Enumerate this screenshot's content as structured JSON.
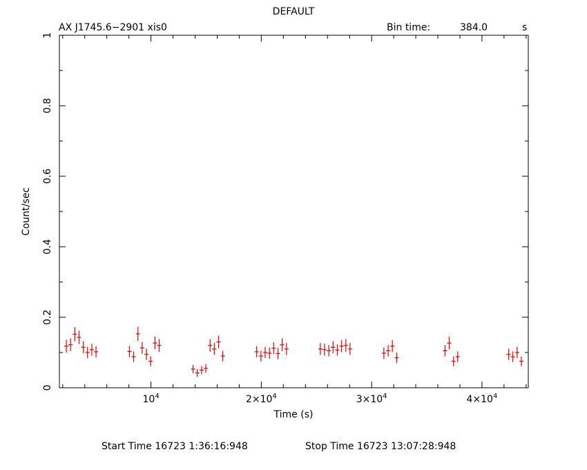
{
  "chart_data": {
    "type": "scatter",
    "title": "DEFAULT",
    "header_left": "AX J1745.6−2901  xis0",
    "header_bin_label": "Bin time:",
    "header_bin_value": "384.0",
    "header_bin_unit": "s",
    "xlabel": "Time (s)",
    "ylabel": "Count/sec",
    "xlim": [
      1700,
      44200
    ],
    "ylim": [
      0,
      1
    ],
    "x_ticks": [
      {
        "value": 10000,
        "base": "10",
        "exp": "4"
      },
      {
        "value": 20000,
        "base": "2×10",
        "exp": "4"
      },
      {
        "value": 30000,
        "base": "3×10",
        "exp": "4"
      },
      {
        "value": 40000,
        "base": "4×10",
        "exp": "4"
      }
    ],
    "y_ticks": [
      "0",
      "0.2",
      "0.4",
      "0.6",
      "0.8",
      "1"
    ],
    "y_tick_values": [
      0,
      0.2,
      0.4,
      0.6,
      0.8,
      1
    ],
    "footer_start": "Start Time 16723  1:36:16:948",
    "footer_stop": "Stop Time 16723 13:07:28:948",
    "marker_color": "#dd0000",
    "bin_half_width": 192,
    "series": [
      {
        "x": [
          2330,
          2710,
          3100,
          3480,
          3870,
          4250,
          4640,
          5020,
          8050,
          8430,
          8820,
          9200,
          9590,
          9970,
          10360,
          10740,
          13820,
          14200,
          14590,
          14970,
          15360,
          15740,
          16130,
          16510,
          19580,
          19970,
          20350,
          20740,
          21120,
          21510,
          21890,
          22280,
          25350,
          25730,
          26120,
          26500,
          26890,
          27270,
          27660,
          28040,
          31110,
          31500,
          31880,
          32270,
          36650,
          37030,
          37420,
          37800,
          42420,
          42800,
          43190,
          43570
        ],
        "y": [
          0.118,
          0.122,
          0.152,
          0.143,
          0.115,
          0.1,
          0.108,
          0.102,
          0.103,
          0.088,
          0.153,
          0.113,
          0.095,
          0.075,
          0.127,
          0.12,
          0.053,
          0.042,
          0.05,
          0.055,
          0.12,
          0.11,
          0.13,
          0.09,
          0.102,
          0.09,
          0.1,
          0.098,
          0.112,
          0.097,
          0.122,
          0.11,
          0.11,
          0.108,
          0.105,
          0.115,
          0.107,
          0.118,
          0.12,
          0.11,
          0.098,
          0.105,
          0.118,
          0.085,
          0.105,
          0.127,
          0.075,
          0.088,
          0.095,
          0.088,
          0.1,
          0.075
        ],
        "yerr": [
          0.018,
          0.018,
          0.02,
          0.019,
          0.017,
          0.016,
          0.017,
          0.016,
          0.016,
          0.015,
          0.02,
          0.017,
          0.016,
          0.014,
          0.018,
          0.018,
          0.012,
          0.011,
          0.012,
          0.012,
          0.018,
          0.017,
          0.018,
          0.015,
          0.016,
          0.015,
          0.016,
          0.016,
          0.017,
          0.016,
          0.018,
          0.017,
          0.017,
          0.017,
          0.016,
          0.017,
          0.016,
          0.017,
          0.018,
          0.017,
          0.016,
          0.016,
          0.017,
          0.015,
          0.016,
          0.018,
          0.014,
          0.015,
          0.016,
          0.015,
          0.016,
          0.014
        ]
      }
    ]
  }
}
